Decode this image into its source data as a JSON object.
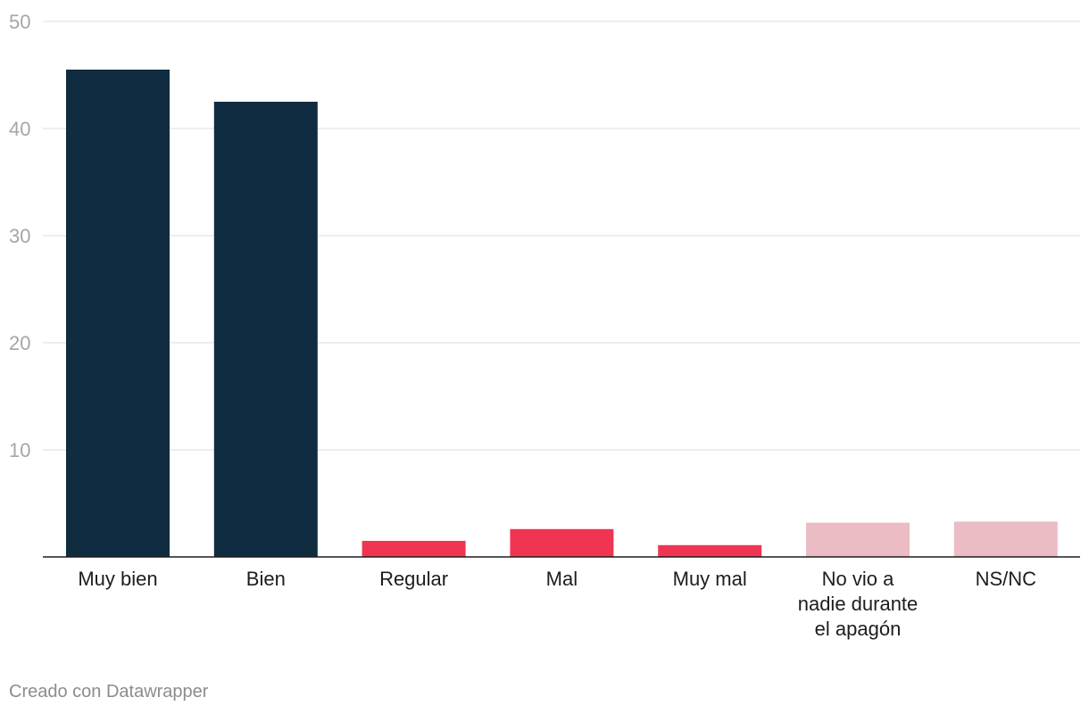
{
  "chart_data": {
    "type": "bar",
    "categories": [
      "Muy bien",
      "Bien",
      "Regular",
      "Mal",
      "Muy mal",
      "No vio a nadie durante el apagón",
      "NS/NC"
    ],
    "category_lines": [
      [
        "Muy bien"
      ],
      [
        "Bien"
      ],
      [
        "Regular"
      ],
      [
        "Mal"
      ],
      [
        "Muy mal"
      ],
      [
        "No vio a",
        "nadie durante",
        "el apagón"
      ],
      [
        "NS/NC"
      ]
    ],
    "values": [
      45.5,
      42.5,
      1.5,
      2.6,
      1.1,
      3.2,
      3.3
    ],
    "colors": [
      "#0f2c40",
      "#0f2c40",
      "#f03553",
      "#f03553",
      "#f03553",
      "#ecbcc4",
      "#ecbcc4"
    ],
    "ylim": [
      0,
      50
    ],
    "yticks": [
      10,
      20,
      30,
      40,
      50
    ],
    "grid": true,
    "title": "",
    "xlabel": "",
    "ylabel": ""
  },
  "footer": {
    "credit": "Creado con Datawrapper"
  }
}
